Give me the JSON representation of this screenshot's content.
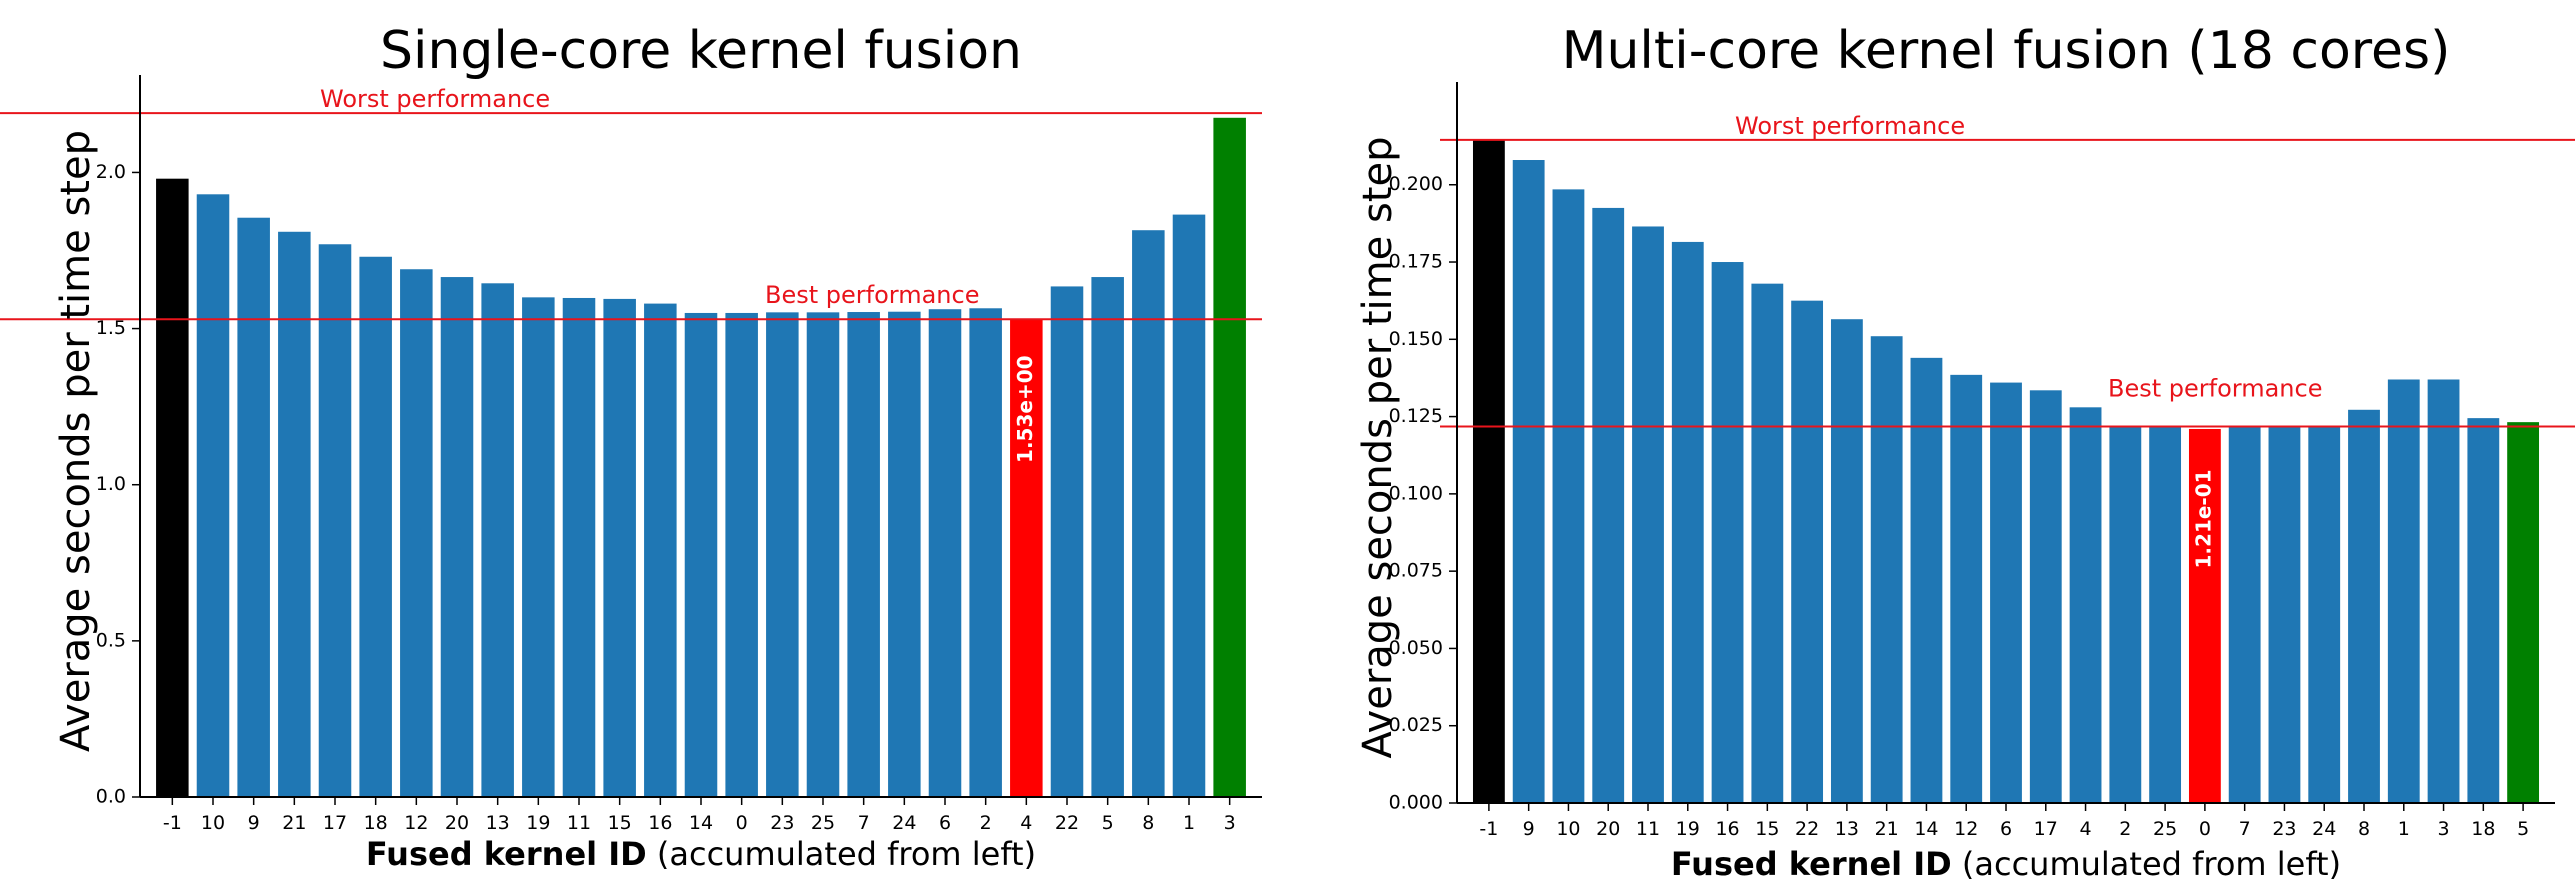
{
  "colors": {
    "bar": "#1f77b4",
    "baseline_bar": "#000000",
    "best_bar": "#ff0000",
    "last_bar": "#008000",
    "reference_line": "#e8141b",
    "annotation_text": "#e8141b",
    "value_label": "#ffffff",
    "axis": "#000000"
  },
  "chart_data": [
    {
      "type": "bar",
      "title": "Single-core kernel fusion",
      "xlabel_bold": "Fused kernel ID",
      "xlabel_rest": " (accumulated from left)",
      "ylabel": "Average seconds per time step",
      "categories": [
        "-1",
        "10",
        "9",
        "21",
        "17",
        "18",
        "12",
        "20",
        "13",
        "19",
        "11",
        "15",
        "16",
        "14",
        "0",
        "23",
        "25",
        "7",
        "24",
        "6",
        "2",
        "4",
        "22",
        "5",
        "8",
        "1",
        "3"
      ],
      "values": [
        1.98,
        1.93,
        1.855,
        1.81,
        1.77,
        1.73,
        1.69,
        1.665,
        1.645,
        1.6,
        1.598,
        1.595,
        1.58,
        1.55,
        1.55,
        1.552,
        1.552,
        1.553,
        1.554,
        1.562,
        1.565,
        1.53,
        1.635,
        1.665,
        1.815,
        1.865,
        2.175
      ],
      "bar_colors": [
        "baseline_bar",
        "bar",
        "bar",
        "bar",
        "bar",
        "bar",
        "bar",
        "bar",
        "bar",
        "bar",
        "bar",
        "bar",
        "bar",
        "bar",
        "bar",
        "bar",
        "bar",
        "bar",
        "bar",
        "bar",
        "bar",
        "best_bar",
        "bar",
        "bar",
        "bar",
        "bar",
        "last_bar"
      ],
      "ylim": [
        0,
        2.28
      ],
      "yticks": [
        "0.0",
        "0.5",
        "1.0",
        "1.5",
        "2.0"
      ],
      "reference_lines": [
        {
          "label": "Worst performance",
          "y": 2.19
        },
        {
          "label": "Best performance",
          "y": 1.53
        }
      ],
      "best_index": 21,
      "best_value_label": "1.53e+00"
    },
    {
      "type": "bar",
      "title": "Multi-core kernel fusion (18 cores)",
      "xlabel_bold": "Fused kernel ID",
      "xlabel_rest": " (accumulated from left)",
      "ylabel": "Average seconds per time step",
      "categories": [
        "-1",
        "9",
        "10",
        "20",
        "11",
        "19",
        "16",
        "15",
        "22",
        "13",
        "21",
        "14",
        "12",
        "6",
        "17",
        "4",
        "2",
        "25",
        "0",
        "7",
        "23",
        "24",
        "8",
        "1",
        "3",
        "18",
        "5"
      ],
      "values": [
        0.2145,
        0.208,
        0.1985,
        0.1925,
        0.1865,
        0.1815,
        0.175,
        0.168,
        0.1625,
        0.1565,
        0.151,
        0.144,
        0.1385,
        0.136,
        0.1335,
        0.128,
        0.1218,
        0.1218,
        0.121,
        0.1218,
        0.122,
        0.122,
        0.1272,
        0.137,
        0.137,
        0.1245,
        0.1232
      ],
      "bar_colors": [
        "baseline_bar",
        "bar",
        "bar",
        "bar",
        "bar",
        "bar",
        "bar",
        "bar",
        "bar",
        "bar",
        "bar",
        "bar",
        "bar",
        "bar",
        "bar",
        "bar",
        "bar",
        "bar",
        "best_bar",
        "bar",
        "bar",
        "bar",
        "bar",
        "bar",
        "bar",
        "bar",
        "last_bar"
      ],
      "ylim": [
        0,
        0.23
      ],
      "yticks": [
        "0.000",
        "0.025",
        "0.050",
        "0.075",
        "0.100",
        "0.125",
        "0.150",
        "0.175",
        "0.200"
      ],
      "reference_lines": [
        {
          "label": "Worst performance",
          "y": 0.2145
        },
        {
          "label": "Best performance",
          "y": 0.1218
        }
      ],
      "best_index": 18,
      "best_value_label": "1.21e-01"
    }
  ]
}
